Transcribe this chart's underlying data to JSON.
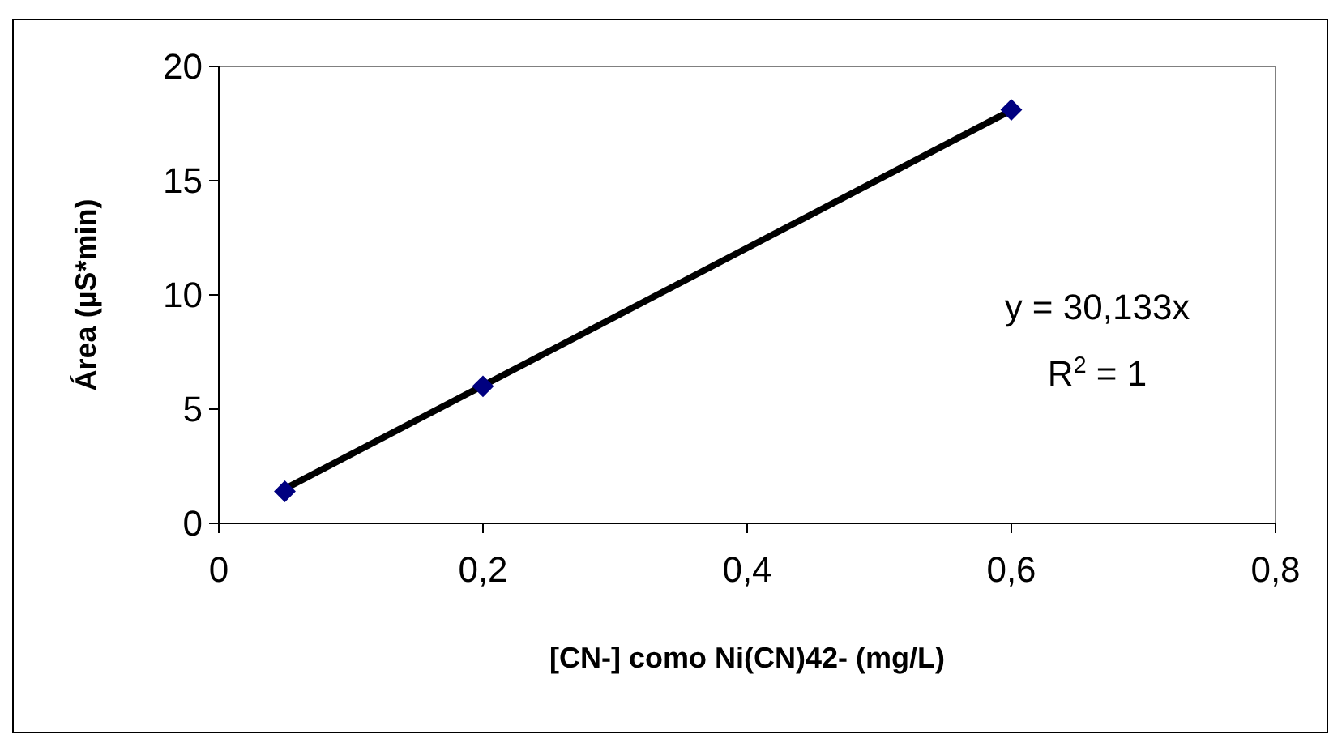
{
  "chart_data": {
    "type": "scatter",
    "xlabel": "[CN-] como Ni(CN)42- (mg/L)",
    "ylabel": "Área (µS*min)",
    "xlim": [
      0,
      0.8
    ],
    "ylim": [
      0,
      20
    ],
    "xticks": [
      0,
      {
        "value": 0.2,
        "label": "0,2"
      },
      {
        "value": 0.4,
        "label": "0,4"
      },
      {
        "value": 0.6,
        "label": "0,6"
      },
      {
        "value": 0.8,
        "label": "0,8"
      }
    ],
    "yticks": [
      0,
      5,
      10,
      15,
      20
    ],
    "series": [
      {
        "color": "#000080",
        "marker": "diamond",
        "x": [
          0.05,
          0.2,
          0.6
        ],
        "values": [
          1.4,
          6.0,
          18.1
        ]
      },
      {
        "type": "line",
        "color": "#000000",
        "marker": "none",
        "line_style": "solid",
        "x": [
          0.05,
          0.6
        ],
        "values": [
          1.51,
          18.08
        ]
      }
    ],
    "annotations": [
      "y = 30,133x",
      "R$^{2}$ = 1"
    ]
  }
}
